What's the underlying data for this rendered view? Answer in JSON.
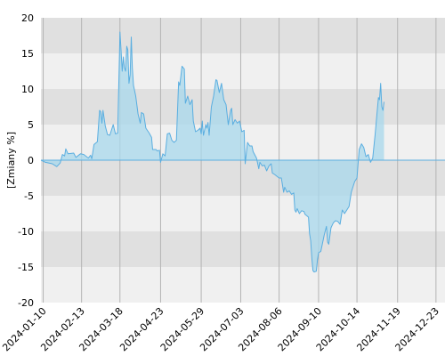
{
  "chart_data": {
    "type": "area",
    "ylabel": "[Zmiany %]",
    "xlabel": "",
    "title": "",
    "ylim": [
      -20,
      20
    ],
    "y_ticks": [
      20,
      15,
      10,
      5,
      0,
      -5,
      -10,
      -15,
      -20
    ],
    "x_range": [
      "2024-01-08",
      "2024-12-31"
    ],
    "x_ticks": [
      "2024-01-10",
      "2024-02-13",
      "2024-03-18",
      "2024-04-23",
      "2024-05-29",
      "2024-07-03",
      "2024-08-06",
      "2024-09-10",
      "2024-10-14",
      "2024-11-19",
      "2024-12-23"
    ],
    "grid": true,
    "colors": {
      "line": "#5aaee0",
      "fill": "#a8d8ec",
      "band_dark": "#e0e0e0",
      "band_light": "#f0f0f0",
      "vgrid": "#b4b4b4"
    },
    "series": [
      {
        "values": [
          [
            "2024-01-08",
            0.0
          ],
          [
            "2024-01-12",
            -0.3
          ],
          [
            "2024-01-18",
            -0.5
          ],
          [
            "2024-01-22",
            -0.9
          ],
          [
            "2024-01-25",
            -0.4
          ],
          [
            "2024-01-27",
            0.8
          ],
          [
            "2024-01-29",
            0.6
          ],
          [
            "2024-01-30",
            1.6
          ],
          [
            "2024-02-01",
            0.9
          ],
          [
            "2024-02-06",
            1.0
          ],
          [
            "2024-02-08",
            0.4
          ],
          [
            "2024-02-12",
            0.9
          ],
          [
            "2024-02-15",
            0.8
          ],
          [
            "2024-02-19",
            0.3
          ],
          [
            "2024-02-21",
            0.7
          ],
          [
            "2024-02-22",
            0.2
          ],
          [
            "2024-02-24",
            2.2
          ],
          [
            "2024-02-27",
            2.6
          ],
          [
            "2024-02-29",
            7.0
          ],
          [
            "2024-03-01",
            6.8
          ],
          [
            "2024-03-02",
            5.2
          ],
          [
            "2024-03-03",
            7.0
          ],
          [
            "2024-03-05",
            4.8
          ],
          [
            "2024-03-07",
            3.6
          ],
          [
            "2024-03-09",
            3.5
          ],
          [
            "2024-03-12",
            5.0
          ],
          [
            "2024-03-14",
            3.7
          ],
          [
            "2024-03-16",
            3.8
          ],
          [
            "2024-03-18",
            18.0
          ],
          [
            "2024-03-19",
            15.5
          ],
          [
            "2024-03-20",
            12.5
          ],
          [
            "2024-03-21",
            14.5
          ],
          [
            "2024-03-22",
            13.0
          ],
          [
            "2024-03-23",
            12.5
          ],
          [
            "2024-03-24",
            16.0
          ],
          [
            "2024-03-25",
            15.5
          ],
          [
            "2024-03-26",
            10.8
          ],
          [
            "2024-03-27",
            12.0
          ],
          [
            "2024-03-28",
            17.3
          ],
          [
            "2024-03-29",
            13.0
          ],
          [
            "2024-03-30",
            10.5
          ],
          [
            "2024-04-01",
            9.0
          ],
          [
            "2024-04-03",
            6.5
          ],
          [
            "2024-04-05",
            5.2
          ],
          [
            "2024-04-06",
            6.7
          ],
          [
            "2024-04-08",
            6.5
          ],
          [
            "2024-04-10",
            4.5
          ],
          [
            "2024-04-13",
            3.8
          ],
          [
            "2024-04-15",
            3.2
          ],
          [
            "2024-04-16",
            1.5
          ],
          [
            "2024-04-19",
            1.5
          ],
          [
            "2024-04-20",
            1.3
          ],
          [
            "2024-04-22",
            1.4
          ],
          [
            "2024-04-23",
            -0.3
          ],
          [
            "2024-04-25",
            0.9
          ],
          [
            "2024-04-27",
            0.6
          ],
          [
            "2024-04-29",
            3.7
          ],
          [
            "2024-05-01",
            3.8
          ],
          [
            "2024-05-03",
            2.8
          ],
          [
            "2024-05-05",
            2.5
          ],
          [
            "2024-05-07",
            2.8
          ],
          [
            "2024-05-09",
            11.0
          ],
          [
            "2024-05-10",
            10.5
          ],
          [
            "2024-05-12",
            13.2
          ],
          [
            "2024-05-14",
            12.8
          ],
          [
            "2024-05-15",
            8.0
          ],
          [
            "2024-05-17",
            9.0
          ],
          [
            "2024-05-19",
            7.8
          ],
          [
            "2024-05-21",
            8.5
          ],
          [
            "2024-05-22",
            5.5
          ],
          [
            "2024-05-24",
            4.0
          ],
          [
            "2024-05-26",
            4.2
          ],
          [
            "2024-05-28",
            4.5
          ],
          [
            "2024-05-29",
            3.7
          ],
          [
            "2024-05-30",
            5.5
          ],
          [
            "2024-05-31",
            3.5
          ],
          [
            "2024-06-02",
            5.0
          ],
          [
            "2024-06-03",
            4.5
          ],
          [
            "2024-06-04",
            5.3
          ],
          [
            "2024-06-05",
            3.5
          ],
          [
            "2024-06-07",
            7.5
          ],
          [
            "2024-06-09",
            9.0
          ],
          [
            "2024-06-11",
            11.3
          ],
          [
            "2024-06-12",
            11.2
          ],
          [
            "2024-06-14",
            9.5
          ],
          [
            "2024-06-16",
            10.8
          ],
          [
            "2024-06-18",
            8.5
          ],
          [
            "2024-06-20",
            7.8
          ],
          [
            "2024-06-22",
            5.0
          ],
          [
            "2024-06-24",
            7.0
          ],
          [
            "2024-06-25",
            7.3
          ],
          [
            "2024-06-26",
            5.0
          ],
          [
            "2024-06-28",
            5.7
          ],
          [
            "2024-06-30",
            5.2
          ],
          [
            "2024-07-02",
            5.5
          ],
          [
            "2024-07-04",
            4.0
          ],
          [
            "2024-07-06",
            4.2
          ],
          [
            "2024-07-07",
            -0.5
          ],
          [
            "2024-07-09",
            2.5
          ],
          [
            "2024-07-11",
            2.0
          ],
          [
            "2024-07-13",
            2.0
          ],
          [
            "2024-07-14",
            1.2
          ],
          [
            "2024-07-17",
            0.3
          ],
          [
            "2024-07-19",
            -1.2
          ],
          [
            "2024-07-20",
            -0.3
          ],
          [
            "2024-07-22",
            -0.8
          ],
          [
            "2024-07-24",
            -0.7
          ],
          [
            "2024-07-26",
            -1.5
          ],
          [
            "2024-07-28",
            -0.8
          ],
          [
            "2024-07-30",
            -0.5
          ],
          [
            "2024-07-31",
            -1.8
          ],
          [
            "2024-08-02",
            -2.0
          ],
          [
            "2024-08-06",
            -2.5
          ],
          [
            "2024-08-08",
            -2.5
          ],
          [
            "2024-08-10",
            -4.5
          ],
          [
            "2024-08-11",
            -3.8
          ],
          [
            "2024-08-13",
            -4.5
          ],
          [
            "2024-08-15",
            -4.3
          ],
          [
            "2024-08-17",
            -4.8
          ],
          [
            "2024-08-19",
            -4.6
          ],
          [
            "2024-08-20",
            -7.0
          ],
          [
            "2024-08-21",
            -7.3
          ],
          [
            "2024-08-22",
            -6.8
          ],
          [
            "2024-08-24",
            -7.5
          ],
          [
            "2024-08-26",
            -7.1
          ],
          [
            "2024-08-28",
            -7.2
          ],
          [
            "2024-08-29",
            -7.6
          ],
          [
            "2024-09-01",
            -8.0
          ],
          [
            "2024-09-02",
            -10.3
          ],
          [
            "2024-09-03",
            -11.3
          ],
          [
            "2024-09-04",
            -13.8
          ],
          [
            "2024-09-05",
            -15.5
          ],
          [
            "2024-09-06",
            -15.7
          ],
          [
            "2024-09-08",
            -15.6
          ],
          [
            "2024-09-09",
            -14.0
          ],
          [
            "2024-09-10",
            -13.0
          ],
          [
            "2024-09-12",
            -12.8
          ],
          [
            "2024-09-15",
            -10.5
          ],
          [
            "2024-09-17",
            -9.3
          ],
          [
            "2024-09-18",
            -11.5
          ],
          [
            "2024-09-19",
            -11.8
          ],
          [
            "2024-09-21",
            -9.5
          ],
          [
            "2024-09-23",
            -8.8
          ],
          [
            "2024-09-25",
            -8.5
          ],
          [
            "2024-09-27",
            -8.6
          ],
          [
            "2024-09-29",
            -9.0
          ],
          [
            "2024-10-01",
            -7.0
          ],
          [
            "2024-10-03",
            -7.5
          ],
          [
            "2024-10-05",
            -7.0
          ],
          [
            "2024-10-07",
            -6.5
          ],
          [
            "2024-10-09",
            -4.5
          ],
          [
            "2024-10-12",
            -3.0
          ],
          [
            "2024-10-14",
            -2.5
          ],
          [
            "2024-10-16",
            1.5
          ],
          [
            "2024-10-18",
            2.3
          ],
          [
            "2024-10-20",
            1.8
          ],
          [
            "2024-10-22",
            0.5
          ],
          [
            "2024-10-24",
            0.8
          ],
          [
            "2024-10-26",
            -0.3
          ],
          [
            "2024-10-28",
            0.3
          ],
          [
            "2024-10-30",
            3.5
          ],
          [
            "2024-11-01",
            7.0
          ],
          [
            "2024-11-02",
            8.8
          ],
          [
            "2024-11-03",
            8.5
          ],
          [
            "2024-11-04",
            10.8
          ],
          [
            "2024-11-05",
            7.5
          ],
          [
            "2024-11-06",
            7.0
          ],
          [
            "2024-11-07",
            8.2
          ]
        ]
      }
    ]
  }
}
